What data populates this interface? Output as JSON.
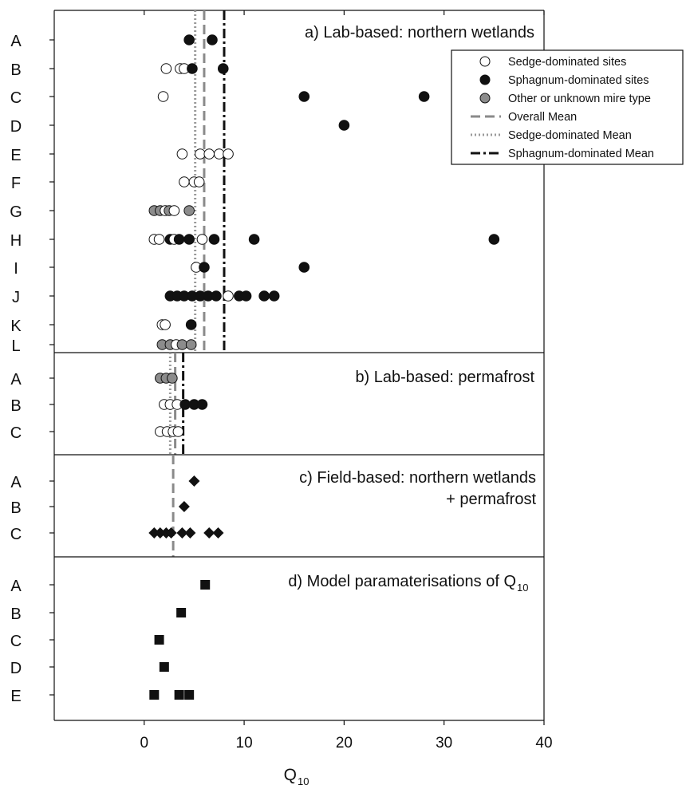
{
  "chart_data": {
    "type": "scatter",
    "xlabel_main": "Q",
    "xlabel_sub": "10",
    "xlim": [
      -9,
      40
    ],
    "x_ticks": [
      0,
      10,
      20,
      30,
      40
    ],
    "tick_labels": [
      "0",
      "10",
      "20",
      "30",
      "40"
    ],
    "colors": {
      "sedge": "#ffffff",
      "sphagnum": "#111111",
      "other": "#8c8c8c",
      "field": "#111111",
      "model": "#111111"
    },
    "legend": {
      "placement": "top-right",
      "entries": [
        {
          "key": "sedge",
          "label": "Sedge-dominated sites"
        },
        {
          "key": "sphagnum",
          "label": "Sphagnum-dominated sites"
        },
        {
          "key": "other",
          "label": "Other or unknown mire type"
        },
        {
          "key": "overall_mean",
          "label": "Overall Mean"
        },
        {
          "key": "sedge_mean",
          "label": "Sedge-dominated Mean"
        },
        {
          "key": "sphagnum_mean",
          "label": "Sphagnum-dominated Mean"
        }
      ]
    },
    "panels": [
      {
        "id": "a",
        "title_lines": [
          "a) Lab-based: northern wetlands"
        ],
        "rows": [
          {
            "label": "A",
            "points": [
              {
                "x": 4.5,
                "s": "sphagnum"
              },
              {
                "x": 6.8,
                "s": "sphagnum"
              }
            ]
          },
          {
            "label": "B",
            "points": [
              {
                "x": 2.2,
                "s": "sedge"
              },
              {
                "x": 3.6,
                "s": "sedge"
              },
              {
                "x": 4.0,
                "s": "sedge"
              },
              {
                "x": 4.8,
                "s": "sphagnum"
              },
              {
                "x": 7.9,
                "s": "sphagnum"
              }
            ]
          },
          {
            "label": "C",
            "points": [
              {
                "x": 1.9,
                "s": "sedge"
              },
              {
                "x": 16,
                "s": "sphagnum"
              },
              {
                "x": 28,
                "s": "sphagnum"
              }
            ]
          },
          {
            "label": "D",
            "points": [
              {
                "x": 20,
                "s": "sphagnum"
              }
            ]
          },
          {
            "label": "E",
            "points": [
              {
                "x": 3.8,
                "s": "sedge"
              },
              {
                "x": 5.6,
                "s": "sedge"
              },
              {
                "x": 6.5,
                "s": "sedge"
              },
              {
                "x": 7.5,
                "s": "sedge"
              },
              {
                "x": 8.4,
                "s": "sedge"
              }
            ]
          },
          {
            "label": "F",
            "points": [
              {
                "x": 4.0,
                "s": "sedge"
              },
              {
                "x": 5.0,
                "s": "sedge"
              },
              {
                "x": 5.5,
                "s": "sedge"
              }
            ]
          },
          {
            "label": "G",
            "points": [
              {
                "x": 1.0,
                "s": "other"
              },
              {
                "x": 1.6,
                "s": "other"
              },
              {
                "x": 2.1,
                "s": "sedge"
              },
              {
                "x": 2.5,
                "s": "other"
              },
              {
                "x": 3.0,
                "s": "sedge"
              },
              {
                "x": 4.5,
                "s": "other"
              }
            ]
          },
          {
            "label": "H",
            "points": [
              {
                "x": 1.0,
                "s": "sedge"
              },
              {
                "x": 1.5,
                "s": "sedge"
              },
              {
                "x": 2.6,
                "s": "sphagnum"
              },
              {
                "x": 3.0,
                "s": "sedge"
              },
              {
                "x": 3.5,
                "s": "sphagnum"
              },
              {
                "x": 4.5,
                "s": "sphagnum"
              },
              {
                "x": 5.8,
                "s": "sedge"
              },
              {
                "x": 7.0,
                "s": "sphagnum"
              },
              {
                "x": 11,
                "s": "sphagnum"
              },
              {
                "x": 35,
                "s": "sphagnum"
              }
            ]
          },
          {
            "label": "I",
            "points": [
              {
                "x": 5.2,
                "s": "sedge"
              },
              {
                "x": 6.0,
                "s": "sphagnum"
              },
              {
                "x": 16,
                "s": "sphagnum"
              }
            ]
          },
          {
            "label": "J",
            "points": [
              {
                "x": 2.6,
                "s": "sphagnum"
              },
              {
                "x": 3.3,
                "s": "sphagnum"
              },
              {
                "x": 4.0,
                "s": "sphagnum"
              },
              {
                "x": 4.8,
                "s": "sphagnum"
              },
              {
                "x": 5.6,
                "s": "sphagnum"
              },
              {
                "x": 6.4,
                "s": "sphagnum"
              },
              {
                "x": 7.2,
                "s": "sphagnum"
              },
              {
                "x": 8.4,
                "s": "sedge"
              },
              {
                "x": 9.5,
                "s": "sphagnum"
              },
              {
                "x": 10.2,
                "s": "sphagnum"
              },
              {
                "x": 12,
                "s": "sphagnum"
              },
              {
                "x": 13,
                "s": "sphagnum"
              }
            ]
          },
          {
            "label": "K",
            "points": [
              {
                "x": 1.8,
                "s": "sedge"
              },
              {
                "x": 2.1,
                "s": "sedge"
              },
              {
                "x": 4.7,
                "s": "sphagnum"
              }
            ]
          },
          {
            "label": "L",
            "points": [
              {
                "x": 1.8,
                "s": "other"
              },
              {
                "x": 2.6,
                "s": "other"
              },
              {
                "x": 3.2,
                "s": "sedge"
              },
              {
                "x": 3.8,
                "s": "other"
              },
              {
                "x": 4.7,
                "s": "other"
              }
            ]
          }
        ],
        "lines": [
          {
            "key": "overall_mean",
            "x": 6.0
          },
          {
            "key": "sedge_mean",
            "x": 5.1
          },
          {
            "key": "sphagnum_mean",
            "x": 8.0
          }
        ]
      },
      {
        "id": "b",
        "title_lines": [
          "b) Lab-based: permafrost"
        ],
        "rows": [
          {
            "label": "A",
            "points": [
              {
                "x": 1.6,
                "s": "other"
              },
              {
                "x": 2.2,
                "s": "other"
              },
              {
                "x": 2.8,
                "s": "other"
              }
            ]
          },
          {
            "label": "B",
            "points": [
              {
                "x": 2.0,
                "s": "sedge"
              },
              {
                "x": 2.6,
                "s": "sedge"
              },
              {
                "x": 3.3,
                "s": "sedge"
              },
              {
                "x": 4.1,
                "s": "sphagnum"
              },
              {
                "x": 5.0,
                "s": "sphagnum"
              },
              {
                "x": 5.8,
                "s": "sphagnum"
              }
            ]
          },
          {
            "label": "C",
            "points": [
              {
                "x": 1.6,
                "s": "sedge"
              },
              {
                "x": 2.3,
                "s": "sedge"
              },
              {
                "x": 2.9,
                "s": "sedge"
              },
              {
                "x": 3.4,
                "s": "sedge"
              }
            ]
          }
        ],
        "lines": [
          {
            "key": "overall_mean",
            "x": 3.1
          },
          {
            "key": "sedge_mean",
            "x": 2.6
          },
          {
            "key": "sphagnum_mean",
            "x": 3.9
          }
        ]
      },
      {
        "id": "c",
        "title_lines": [
          "c) Field-based: northern wetlands",
          "+ permafrost"
        ],
        "rows": [
          {
            "label": "A",
            "points": [
              {
                "x": 5.0,
                "s": "field"
              }
            ]
          },
          {
            "label": "B",
            "points": [
              {
                "x": 4.0,
                "s": "field"
              }
            ]
          },
          {
            "label": "C",
            "points": [
              {
                "x": 1.0,
                "s": "field"
              },
              {
                "x": 1.6,
                "s": "field"
              },
              {
                "x": 2.2,
                "s": "field"
              },
              {
                "x": 2.7,
                "s": "field"
              },
              {
                "x": 3.8,
                "s": "field"
              },
              {
                "x": 4.6,
                "s": "field"
              },
              {
                "x": 6.5,
                "s": "field"
              },
              {
                "x": 7.4,
                "s": "field"
              }
            ]
          }
        ],
        "lines": [
          {
            "key": "overall_mean",
            "x": 2.9
          }
        ]
      },
      {
        "id": "d",
        "title_lines": [
          "d) Model paramaterisations of Q"
        ],
        "title_sub": "10",
        "rows": [
          {
            "label": "A",
            "points": [
              {
                "x": 6.1,
                "s": "model"
              }
            ]
          },
          {
            "label": "B",
            "points": [
              {
                "x": 3.7,
                "s": "model"
              }
            ]
          },
          {
            "label": "C",
            "points": [
              {
                "x": 1.5,
                "s": "model"
              }
            ]
          },
          {
            "label": "D",
            "points": [
              {
                "x": 2.0,
                "s": "model"
              }
            ]
          },
          {
            "label": "E",
            "points": [
              {
                "x": 1.0,
                "s": "model"
              },
              {
                "x": 3.5,
                "s": "model"
              },
              {
                "x": 4.5,
                "s": "model"
              }
            ]
          }
        ],
        "lines": []
      }
    ]
  }
}
